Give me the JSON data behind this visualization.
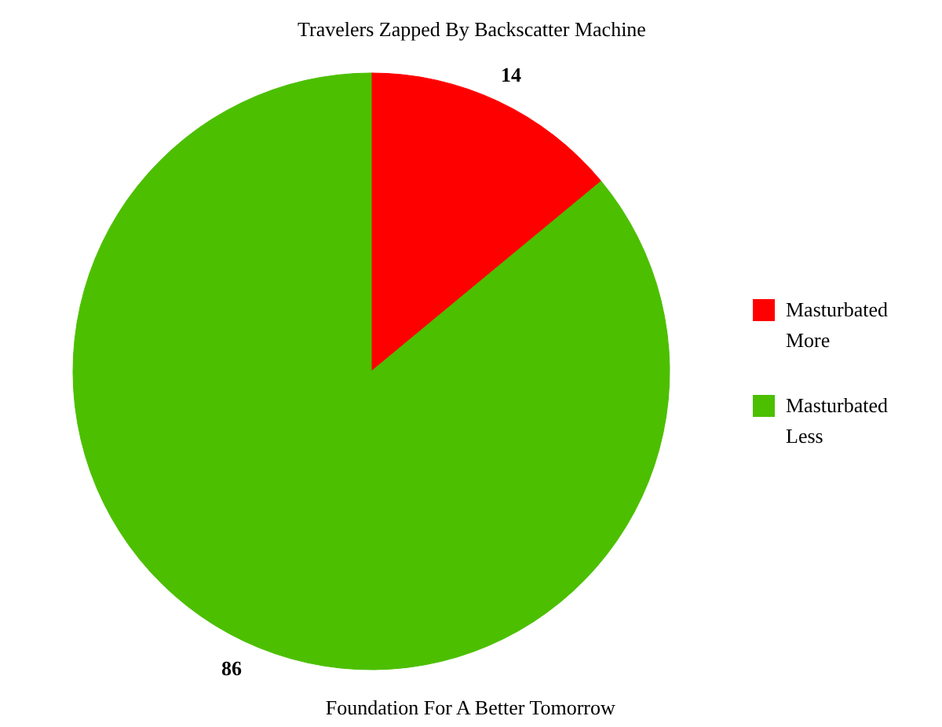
{
  "chart_data": {
    "type": "pie",
    "title": "Travelers Zapped By Backscatter Machine",
    "categories": [
      "Masturbated More",
      "Masturbated Less"
    ],
    "values": [
      14,
      86
    ],
    "colors": [
      "#ff0000",
      "#4cbf00"
    ],
    "data_labels": true,
    "legend": "right",
    "annotations": [
      "Foundation For A Better Tomorrow"
    ]
  }
}
